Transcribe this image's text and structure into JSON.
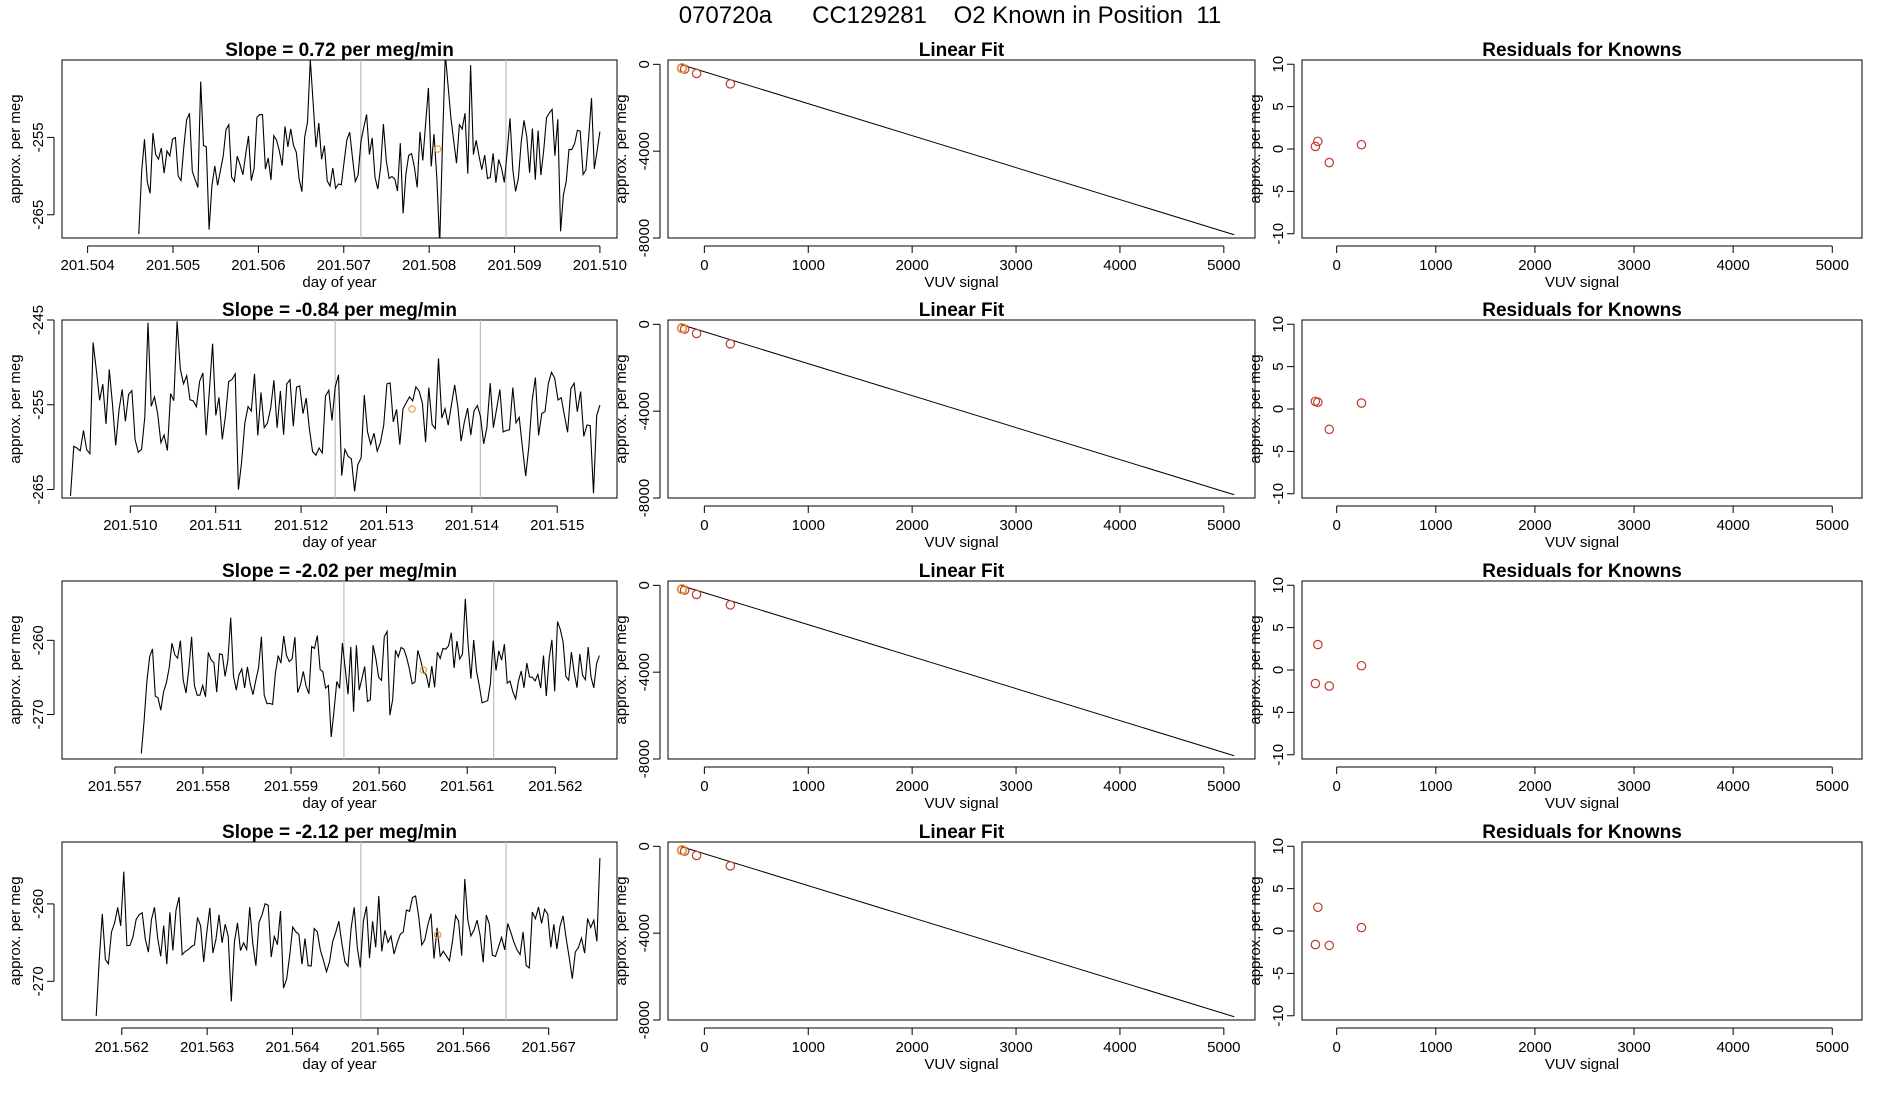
{
  "page": {
    "title": "070720a      CC129281    O2 Known in Position  11"
  },
  "colors": {
    "trace": "#000000",
    "marker_orange": "#e8a13a",
    "marker_red": "#c0392b",
    "vline": "#bdbdbd"
  },
  "chart_data": [
    {
      "type": "line",
      "title": "Slope =  0.72  per meg/min",
      "xlabel": "day of year",
      "ylabel": "approx. per meg",
      "xlim": [
        201.5037,
        201.5102
      ],
      "ylim": [
        -268,
        -245
      ],
      "xticks": [
        "201.504",
        "201.505",
        "201.506",
        "201.507",
        "201.508",
        "201.509",
        "201.510"
      ],
      "xtick_values": [
        201.504,
        201.505,
        201.506,
        201.507,
        201.508,
        201.509,
        201.51
      ],
      "yticks": [
        "-255",
        "-265"
      ],
      "ytick_values": [
        -255,
        -265
      ],
      "vlines": [
        201.5072,
        201.5089
      ],
      "marker": {
        "x": 201.5081,
        "y": -256.5
      },
      "x_start": 201.5046,
      "x_end": 201.51,
      "y_base": -257,
      "y_amp": 6,
      "seed": 11
    },
    {
      "type": "line",
      "title": "Slope =  -0.84  per meg/min",
      "xlabel": "day of year",
      "ylabel": "approx. per meg",
      "xlim": [
        201.5092,
        201.5157
      ],
      "ylim": [
        -266,
        -245
      ],
      "xticks": [
        "201.510",
        "201.511",
        "201.512",
        "201.513",
        "201.514",
        "201.515"
      ],
      "xtick_values": [
        201.51,
        201.511,
        201.512,
        201.513,
        201.514,
        201.515
      ],
      "yticks": [
        "-245",
        "-255",
        "-265"
      ],
      "ytick_values": [
        -245,
        -255,
        -265
      ],
      "vlines": [
        201.5124,
        201.5141
      ],
      "marker": {
        "x": 201.5133,
        "y": -255.5
      },
      "x_start": 201.5093,
      "x_end": 201.5155,
      "y_base": -256,
      "y_amp": 5.5,
      "seed": 23
    },
    {
      "type": "line",
      "title": "Slope =  -2.02  per meg/min",
      "xlabel": "day of year",
      "ylabel": "approx. per meg",
      "xlim": [
        201.5564,
        201.5627
      ],
      "ylim": [
        -276,
        -252
      ],
      "xticks": [
        "201.557",
        "201.558",
        "201.559",
        "201.560",
        "201.561",
        "201.562"
      ],
      "xtick_values": [
        201.557,
        201.558,
        201.559,
        201.56,
        201.561,
        201.562
      ],
      "yticks": [
        "-260",
        "-270"
      ],
      "ytick_values": [
        -260,
        -270
      ],
      "vlines": [
        201.5596,
        201.5613
      ],
      "marker": {
        "x": 201.5605,
        "y": -264
      },
      "x_start": 201.5573,
      "x_end": 201.5625,
      "y_base": -264,
      "y_amp": 6,
      "seed": 37
    },
    {
      "type": "line",
      "title": "Slope =  -2.12  per meg/min",
      "xlabel": "day of year",
      "ylabel": "approx. per meg",
      "xlim": [
        201.5613,
        201.5678
      ],
      "ylim": [
        -275,
        -252
      ],
      "xticks": [
        "201.562",
        "201.563",
        "201.564",
        "201.565",
        "201.566",
        "201.567"
      ],
      "xtick_values": [
        201.562,
        201.563,
        201.564,
        201.565,
        201.566,
        201.567
      ],
      "yticks": [
        "-260",
        "-270"
      ],
      "ytick_values": [
        -260,
        -270
      ],
      "vlines": [
        201.5648,
        201.5665
      ],
      "marker": {
        "x": 201.5657,
        "y": -264
      },
      "x_start": 201.5617,
      "x_end": 201.5676,
      "y_base": -264,
      "y_amp": 5.5,
      "seed": 51
    },
    {
      "type": "scatter",
      "title": "Linear Fit",
      "xlabel": "VUV signal",
      "ylabel": "approx. per meg",
      "xlim": [
        -350,
        5300
      ],
      "ylim": [
        -8000,
        200
      ],
      "xticks": [
        "0",
        "1000",
        "2000",
        "3000",
        "4000",
        "5000"
      ],
      "xtick_values": [
        0,
        1000,
        2000,
        3000,
        4000,
        5000
      ],
      "yticks": [
        "0",
        "-4000",
        "-8000"
      ],
      "ytick_values": [
        0,
        -4000,
        -8000
      ],
      "fit_line": [
        [
          -230,
          0
        ],
        [
          5100,
          -7850
        ]
      ],
      "points": [
        [
          -215,
          -180
        ],
        [
          -190,
          -220
        ],
        [
          -75,
          -420
        ],
        [
          250,
          -900
        ]
      ],
      "highlight": [
        [
          -215,
          -180
        ]
      ]
    },
    {
      "type": "scatter",
      "title": "Linear Fit",
      "xlabel": "VUV signal",
      "ylabel": "approx. per meg",
      "xlim": [
        -350,
        5300
      ],
      "ylim": [
        -8000,
        200
      ],
      "xticks": [
        "0",
        "1000",
        "2000",
        "3000",
        "4000",
        "5000"
      ],
      "xtick_values": [
        0,
        1000,
        2000,
        3000,
        4000,
        5000
      ],
      "yticks": [
        "0",
        "-4000",
        "-8000"
      ],
      "ytick_values": [
        0,
        -4000,
        -8000
      ],
      "fit_line": [
        [
          -230,
          0
        ],
        [
          5100,
          -7850
        ]
      ],
      "points": [
        [
          -215,
          -180
        ],
        [
          -190,
          -220
        ],
        [
          -75,
          -420
        ],
        [
          250,
          -900
        ]
      ],
      "highlight": [
        [
          -215,
          -180
        ]
      ]
    },
    {
      "type": "scatter",
      "title": "Linear Fit",
      "xlabel": "VUV signal",
      "ylabel": "approx. per meg",
      "xlim": [
        -350,
        5300
      ],
      "ylim": [
        -8000,
        200
      ],
      "xticks": [
        "0",
        "1000",
        "2000",
        "3000",
        "4000",
        "5000"
      ],
      "xtick_values": [
        0,
        1000,
        2000,
        3000,
        4000,
        5000
      ],
      "yticks": [
        "0",
        "-4000",
        "-8000"
      ],
      "ytick_values": [
        0,
        -4000,
        -8000
      ],
      "fit_line": [
        [
          -230,
          0
        ],
        [
          5100,
          -7850
        ]
      ],
      "points": [
        [
          -215,
          -180
        ],
        [
          -190,
          -220
        ],
        [
          -75,
          -420
        ],
        [
          250,
          -900
        ]
      ],
      "highlight": [
        [
          -215,
          -180
        ]
      ]
    },
    {
      "type": "scatter",
      "title": "Linear Fit",
      "xlabel": "VUV signal",
      "ylabel": "approx. per meg",
      "xlim": [
        -350,
        5300
      ],
      "ylim": [
        -8000,
        200
      ],
      "xticks": [
        "0",
        "1000",
        "2000",
        "3000",
        "4000",
        "5000"
      ],
      "xtick_values": [
        0,
        1000,
        2000,
        3000,
        4000,
        5000
      ],
      "yticks": [
        "0",
        "-4000",
        "-8000"
      ],
      "ytick_values": [
        0,
        -4000,
        -8000
      ],
      "fit_line": [
        [
          -230,
          0
        ],
        [
          5100,
          -7850
        ]
      ],
      "points": [
        [
          -215,
          -180
        ],
        [
          -190,
          -220
        ],
        [
          -75,
          -420
        ],
        [
          250,
          -900
        ]
      ],
      "highlight": [
        [
          -215,
          -180
        ]
      ]
    },
    {
      "type": "scatter",
      "title": "Residuals for Knowns",
      "xlabel": "VUV signal",
      "ylabel": "approx. per meg",
      "xlim": [
        -350,
        5300
      ],
      "ylim": [
        -10.5,
        10.5
      ],
      "xticks": [
        "0",
        "1000",
        "2000",
        "3000",
        "4000",
        "5000"
      ],
      "xtick_values": [
        0,
        1000,
        2000,
        3000,
        4000,
        5000
      ],
      "yticks": [
        "-10",
        "-5",
        "0",
        "5",
        "10"
      ],
      "ytick_values": [
        -10,
        -5,
        0,
        5,
        10
      ],
      "points": [
        [
          -215,
          0.3
        ],
        [
          -190,
          0.9
        ],
        [
          -75,
          -1.6
        ],
        [
          250,
          0.5
        ]
      ]
    },
    {
      "type": "scatter",
      "title": "Residuals for Knowns",
      "xlabel": "VUV signal",
      "ylabel": "approx. per meg",
      "xlim": [
        -350,
        5300
      ],
      "ylim": [
        -10.5,
        10.5
      ],
      "xticks": [
        "0",
        "1000",
        "2000",
        "3000",
        "4000",
        "5000"
      ],
      "xtick_values": [
        0,
        1000,
        2000,
        3000,
        4000,
        5000
      ],
      "yticks": [
        "-10",
        "-5",
        "0",
        "5",
        "10"
      ],
      "ytick_values": [
        -10,
        -5,
        0,
        5,
        10
      ],
      "points": [
        [
          -215,
          0.9
        ],
        [
          -190,
          0.8
        ],
        [
          -75,
          -2.4
        ],
        [
          250,
          0.7
        ]
      ]
    },
    {
      "type": "scatter",
      "title": "Residuals for Knowns",
      "xlabel": "VUV signal",
      "ylabel": "approx. per meg",
      "xlim": [
        -350,
        5300
      ],
      "ylim": [
        -10.5,
        10.5
      ],
      "xticks": [
        "0",
        "1000",
        "2000",
        "3000",
        "4000",
        "5000"
      ],
      "xtick_values": [
        0,
        1000,
        2000,
        3000,
        4000,
        5000
      ],
      "yticks": [
        "-10",
        "-5",
        "0",
        "5",
        "10"
      ],
      "ytick_values": [
        -10,
        -5,
        0,
        5,
        10
      ],
      "points": [
        [
          -215,
          -1.6
        ],
        [
          -190,
          3.0
        ],
        [
          -75,
          -1.9
        ],
        [
          250,
          0.5
        ]
      ]
    },
    {
      "type": "scatter",
      "title": "Residuals for Knowns",
      "xlabel": "VUV signal",
      "ylabel": "approx. per meg",
      "xlim": [
        -350,
        5300
      ],
      "ylim": [
        -10.5,
        10.5
      ],
      "xticks": [
        "0",
        "1000",
        "2000",
        "3000",
        "4000",
        "5000"
      ],
      "xtick_values": [
        0,
        1000,
        2000,
        3000,
        4000,
        5000
      ],
      "yticks": [
        "-10",
        "-5",
        "0",
        "5",
        "10"
      ],
      "ytick_values": [
        -10,
        -5,
        0,
        5,
        10
      ],
      "points": [
        [
          -215,
          -1.6
        ],
        [
          -190,
          2.8
        ],
        [
          -75,
          -1.7
        ],
        [
          250,
          0.4
        ]
      ]
    }
  ]
}
